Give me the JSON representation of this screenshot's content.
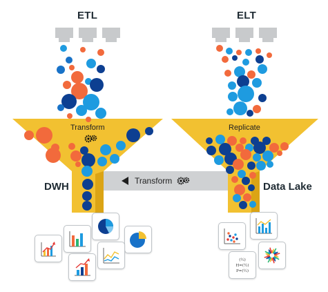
{
  "etl": {
    "title": "ETL",
    "funnel_label": "Transform",
    "target_label": "DWH"
  },
  "elt": {
    "title": "ELT",
    "funnel_label": "Replicate",
    "target_label": "Data Lake"
  },
  "pipe": {
    "label": "Transform",
    "direction": "left"
  },
  "colors": {
    "funnel": "#F2C131",
    "funnel_shadow": "#DBA415",
    "pipe": "#CFD1D3",
    "source": "#C8CACC",
    "orange": "#F26A3C",
    "light_blue": "#1E9BE0",
    "dark_blue": "#0D3F91",
    "blue": "#1872C8"
  },
  "icons": {
    "etl_cards": [
      "arrow-up-chart-icon",
      "bar-chart-icon",
      "pie-chart-icon",
      "pie-chart-icon",
      "bar-chart-up-icon",
      "line-chart-icon"
    ],
    "elt_cards": [
      "scatter-plot-icon",
      "bar-line-chart-icon",
      "formula-icon",
      "radial-chart-icon"
    ]
  }
}
